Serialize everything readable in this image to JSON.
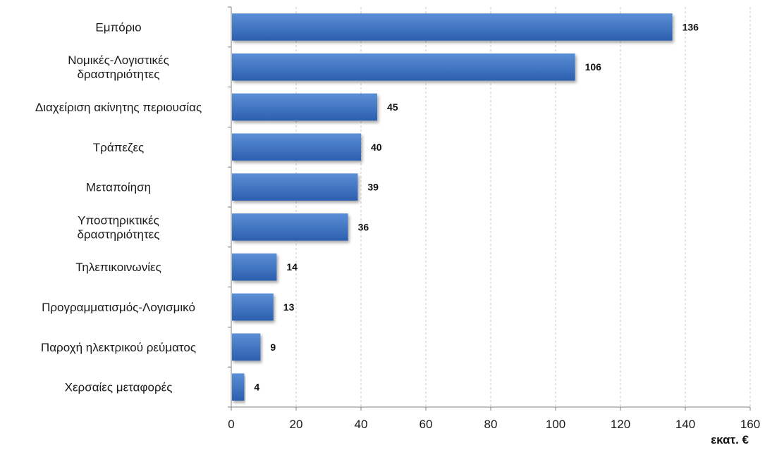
{
  "chart_data": {
    "type": "bar",
    "orientation": "horizontal",
    "categories": [
      [
        "Εμπόριο"
      ],
      [
        "Νομικές-Λογιστικές",
        "δραστηριότητες"
      ],
      [
        "Διαχείριση ακίνητης περιουσίας"
      ],
      [
        "Τράπεζες"
      ],
      [
        "Μεταποίηση"
      ],
      [
        "Υποστηρικτικές",
        "δραστηριότητες"
      ],
      [
        "Τηλεπικοινωνίες"
      ],
      [
        "Προγραμματισμός-Λογισμικό"
      ],
      [
        "Παροχή ηλεκτρικού ρεύματος"
      ],
      [
        "Χερσαίες μεταφορές"
      ]
    ],
    "values": [
      136,
      106,
      45,
      40,
      39,
      36,
      14,
      13,
      9,
      4
    ],
    "xlim": [
      0,
      160
    ],
    "xticks": [
      0,
      20,
      40,
      60,
      80,
      100,
      120,
      140,
      160
    ],
    "unit_label": "εκατ. €",
    "grid": "vertical dashed",
    "colors": {
      "bar_top": "#5b8fd6",
      "bar_bottom": "#2b5fae",
      "grid": "#c8c8c8",
      "axis": "#808080"
    }
  }
}
